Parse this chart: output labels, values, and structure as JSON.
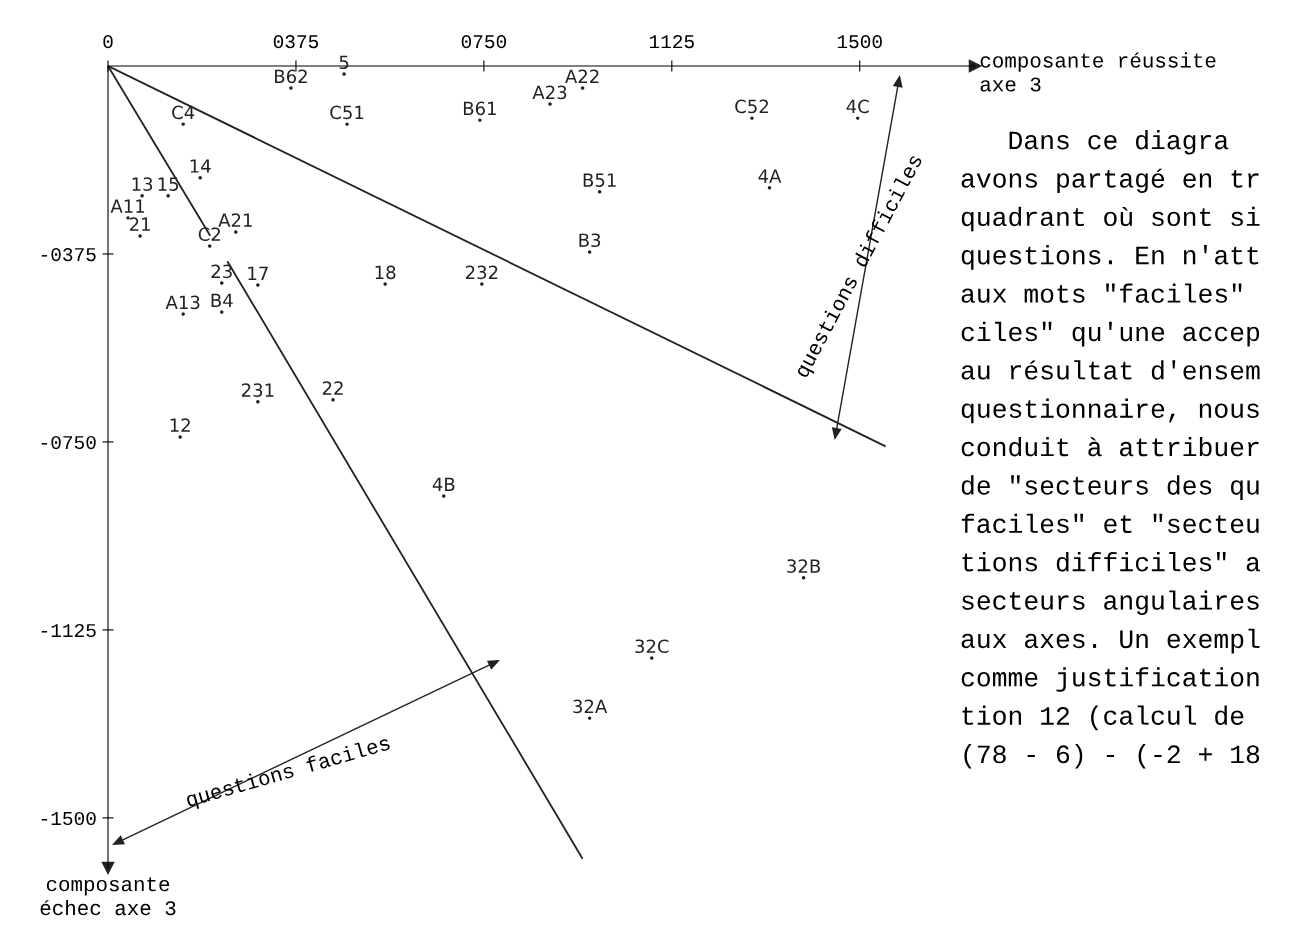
{
  "chart_data": {
    "type": "scatter",
    "xlabel": "composante réussite\naxe 3",
    "ylabel": "composante\néchec axe 3",
    "xlim": [
      0,
      1730
    ],
    "ylim": [
      -1600,
      0
    ],
    "xticks": [
      0,
      {
        "value": 375,
        "label": "0375"
      },
      {
        "value": 750,
        "label": "0750"
      },
      1125,
      1500
    ],
    "yticks": [
      {
        "value": -375,
        "label": "-0375"
      },
      {
        "value": -750,
        "label": "-0750"
      },
      -1125,
      -1500
    ],
    "grid": false,
    "legend": false,
    "series": [
      {
        "name": "5",
        "color": "#222222",
        "x": [
          471
        ],
        "values": [
          -16
        ]
      },
      {
        "name": "B62",
        "color": "#222222",
        "x": [
          365
        ],
        "values": [
          -44
        ]
      },
      {
        "name": "C51",
        "color": "#222222",
        "x": [
          477
        ],
        "values": [
          -116
        ]
      },
      {
        "name": "B61",
        "color": "#222222",
        "x": [
          742
        ],
        "values": [
          -108
        ]
      },
      {
        "name": "A22",
        "color": "#222222",
        "x": [
          947
        ],
        "values": [
          -44
        ]
      },
      {
        "name": "A23",
        "color": "#222222",
        "x": [
          882
        ],
        "values": [
          -76
        ]
      },
      {
        "name": "C52",
        "color": "#222222",
        "x": [
          1285
        ],
        "values": [
          -104
        ]
      },
      {
        "name": "4C",
        "color": "#222222",
        "x": [
          1496
        ],
        "values": [
          -104
        ]
      },
      {
        "name": "C4",
        "color": "#222222",
        "x": [
          150
        ],
        "values": [
          -116
        ]
      },
      {
        "name": "14",
        "color": "#222222",
        "x": [
          184
        ],
        "values": [
          -223
        ]
      },
      {
        "name": "13",
        "color": "#222222",
        "x": [
          68
        ],
        "values": [
          -259
        ]
      },
      {
        "name": "15",
        "color": "#222222",
        "x": [
          120
        ],
        "values": [
          -259
        ]
      },
      {
        "name": "B51",
        "color": "#222222",
        "x": [
          981
        ],
        "values": [
          -251
        ]
      },
      {
        "name": "4A",
        "color": "#222222",
        "x": [
          1320
        ],
        "values": [
          -243
        ]
      },
      {
        "name": "A11",
        "color": "#222222",
        "x": [
          40
        ],
        "values": [
          -303
        ]
      },
      {
        "name": "21",
        "color": "#222222",
        "x": [
          64
        ],
        "values": [
          -339
        ]
      },
      {
        "name": "A21",
        "color": "#222222",
        "x": [
          255
        ],
        "values": [
          -331
        ]
      },
      {
        "name": "C2",
        "color": "#222222",
        "x": [
          203
        ],
        "values": [
          -359
        ]
      },
      {
        "name": "B3",
        "color": "#222222",
        "x": [
          961
        ],
        "values": [
          -371
        ]
      },
      {
        "name": "23",
        "color": "#222222",
        "x": [
          227
        ],
        "values": [
          -433
        ]
      },
      {
        "name": "17",
        "color": "#222222",
        "x": [
          299
        ],
        "values": [
          -437
        ]
      },
      {
        "name": "18",
        "color": "#222222",
        "x": [
          553
        ],
        "values": [
          -435
        ]
      },
      {
        "name": "232",
        "color": "#222222",
        "x": [
          746
        ],
        "values": [
          -435
        ]
      },
      {
        "name": "A13",
        "color": "#222222",
        "x": [
          150
        ],
        "values": [
          -495
        ]
      },
      {
        "name": "B4",
        "color": "#222222",
        "x": [
          227
        ],
        "values": [
          -491
        ]
      },
      {
        "name": "231",
        "color": "#222222",
        "x": [
          299
        ],
        "values": [
          -670
        ]
      },
      {
        "name": "22",
        "color": "#222222",
        "x": [
          449
        ],
        "values": [
          -666
        ]
      },
      {
        "name": "12",
        "color": "#222222",
        "x": [
          144
        ],
        "values": [
          -740
        ]
      },
      {
        "name": "4B",
        "color": "#222222",
        "x": [
          670
        ],
        "values": [
          -858
        ]
      },
      {
        "name": "32B",
        "color": "#222222",
        "x": [
          1388
        ],
        "values": [
          -1021
        ]
      },
      {
        "name": "32C",
        "color": "#222222",
        "x": [
          1085
        ],
        "values": [
          -1181
        ]
      },
      {
        "name": "32A",
        "color": "#222222",
        "x": [
          961
        ],
        "values": [
          -1301
        ]
      },
      {
        "type": "line",
        "color": "#222222",
        "line_style": "solid",
        "x": [
          0,
          1550
        ],
        "values": [
          0,
          -758
        ]
      },
      {
        "type": "line",
        "color": "#222222",
        "line_style": "solid",
        "x": [
          0,
          203,
          221,
          239,
          946
        ],
        "values": [
          0,
          -337,
          null,
          -391,
          -1580
        ]
      }
    ],
    "annotations": [
      "questions difficiles",
      "questions faciles",
      "   Dans ce diagra\navons partagé en tr\nquadrant où sont si\nquestions. En n'att\naux mots \"faciles\"\nciles\" qu'une accep\nau résultat d'ensem\nquestionnaire, nous\nconduit à attribuer\nde \"secteurs des qu\nfaciles\" et \"secteu\ntions difficiles\" a\nsecteurs angulaires\naux axes. Un exempl\ncomme justification\ntion 12 (calcul de\n(78 - 6) - (-2 + 18"
    ]
  }
}
